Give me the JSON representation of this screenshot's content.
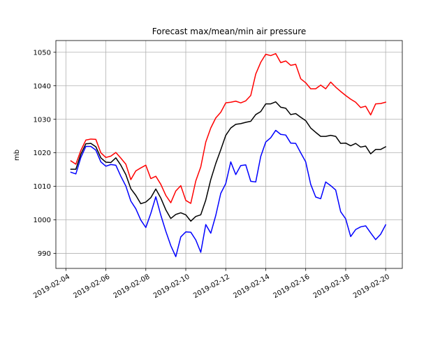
{
  "chart_data": {
    "type": "line",
    "title": "Forecast max/mean/min air pressure",
    "xlabel": "",
    "ylabel": "mb",
    "xlim": [
      "2019-02-03T12:00",
      "2019-02-20T20:00"
    ],
    "ylim": [
      985.5,
      1053.5
    ],
    "x_ticks": [
      "2019-02-04",
      "2019-02-06",
      "2019-02-08",
      "2019-02-10",
      "2019-02-12",
      "2019-02-14",
      "2019-02-16",
      "2019-02-18",
      "2019-02-20"
    ],
    "y_ticks": [
      990,
      1000,
      1010,
      1020,
      1030,
      1040,
      1050
    ],
    "grid": true,
    "legend": "none",
    "x": [
      "2019-02-04T06:00",
      "2019-02-04T12:00",
      "2019-02-04T18:00",
      "2019-02-05T00:00",
      "2019-02-05T06:00",
      "2019-02-05T12:00",
      "2019-02-05T18:00",
      "2019-02-06T00:00",
      "2019-02-06T06:00",
      "2019-02-06T12:00",
      "2019-02-06T18:00",
      "2019-02-07T00:00",
      "2019-02-07T06:00",
      "2019-02-07T12:00",
      "2019-02-07T18:00",
      "2019-02-08T00:00",
      "2019-02-08T06:00",
      "2019-02-08T12:00",
      "2019-02-08T18:00",
      "2019-02-09T00:00",
      "2019-02-09T06:00",
      "2019-02-09T12:00",
      "2019-02-09T18:00",
      "2019-02-10T00:00",
      "2019-02-10T06:00",
      "2019-02-10T12:00",
      "2019-02-10T18:00",
      "2019-02-11T00:00",
      "2019-02-11T06:00",
      "2019-02-11T12:00",
      "2019-02-11T18:00",
      "2019-02-12T00:00",
      "2019-02-12T06:00",
      "2019-02-12T12:00",
      "2019-02-12T18:00",
      "2019-02-13T00:00",
      "2019-02-13T06:00",
      "2019-02-13T12:00",
      "2019-02-13T18:00",
      "2019-02-14T00:00",
      "2019-02-14T06:00",
      "2019-02-14T12:00",
      "2019-02-14T18:00",
      "2019-02-15T00:00",
      "2019-02-15T06:00",
      "2019-02-15T12:00",
      "2019-02-15T18:00",
      "2019-02-16T00:00",
      "2019-02-16T06:00",
      "2019-02-16T12:00",
      "2019-02-16T18:00",
      "2019-02-17T00:00",
      "2019-02-17T06:00",
      "2019-02-17T12:00",
      "2019-02-17T18:00",
      "2019-02-18T00:00",
      "2019-02-18T06:00",
      "2019-02-18T12:00",
      "2019-02-18T18:00",
      "2019-02-19T00:00",
      "2019-02-19T06:00",
      "2019-02-19T12:00",
      "2019-02-19T18:00",
      "2019-02-20T00:00"
    ],
    "series": [
      {
        "color": "#ff0000",
        "values": [
          1017.6,
          1016.6,
          1020.7,
          1023.8,
          1024.1,
          1024.0,
          1020.0,
          1018.6,
          1019.0,
          1020.1,
          1018.4,
          1016.6,
          1012.0,
          1014.6,
          1015.5,
          1016.3,
          1012.3,
          1013.0,
          1010.6,
          1007.3,
          1005.1,
          1008.6,
          1010.2,
          1005.8,
          1004.9,
          1011.6,
          1015.8,
          1023.2,
          1027.4,
          1030.4,
          1032.1,
          1034.9,
          1035.1,
          1035.4,
          1034.9,
          1035.5,
          1037.1,
          1043.5,
          1047.0,
          1049.4,
          1049.0,
          1049.6,
          1046.9,
          1047.4,
          1046.1,
          1046.4,
          1042.1,
          1040.9,
          1039.1,
          1039.1,
          1040.2,
          1039.1,
          1041.1,
          1039.6,
          1038.3,
          1037.1,
          1036.0,
          1035.1,
          1033.5,
          1033.9,
          1031.3,
          1034.6,
          1034.7,
          1035.1
        ]
      },
      {
        "color": "#000000",
        "values": [
          1015.1,
          1015.1,
          1019.6,
          1022.7,
          1022.8,
          1021.8,
          1018.5,
          1017.2,
          1017.1,
          1018.5,
          1016.3,
          1013.5,
          1009.3,
          1007.3,
          1004.8,
          1005.3,
          1006.6,
          1009.2,
          1006.5,
          1003.0,
          1000.4,
          1001.6,
          1002.1,
          1001.5,
          999.6,
          1001.0,
          1001.5,
          1005.9,
          1012.0,
          1016.8,
          1020.9,
          1025.2,
          1027.4,
          1028.5,
          1028.7,
          1029.1,
          1029.4,
          1031.4,
          1032.3,
          1034.6,
          1034.6,
          1035.2,
          1033.6,
          1033.3,
          1031.4,
          1031.7,
          1030.6,
          1029.6,
          1027.4,
          1026.1,
          1024.9,
          1024.9,
          1025.2,
          1024.9,
          1022.8,
          1022.9,
          1022.1,
          1022.8,
          1021.7,
          1022.0,
          1019.7,
          1021.0,
          1021.0,
          1021.8
        ]
      },
      {
        "color": "#0000ff",
        "values": [
          1014.2,
          1013.7,
          1018.6,
          1021.9,
          1021.9,
          1020.8,
          1017.3,
          1016.0,
          1016.5,
          1016.3,
          1013.0,
          1010.1,
          1005.6,
          1003.3,
          999.9,
          997.7,
          1001.9,
          1006.9,
          1001.4,
          996.6,
          992.3,
          989.0,
          994.9,
          996.4,
          996.3,
          994.0,
          990.3,
          998.6,
          996.0,
          1001.3,
          1007.9,
          1010.8,
          1017.3,
          1013.5,
          1016.2,
          1016.4,
          1011.5,
          1011.3,
          1018.9,
          1023.2,
          1024.5,
          1026.7,
          1025.5,
          1025.3,
          1022.9,
          1022.8,
          1020.0,
          1017.3,
          1010.6,
          1006.8,
          1006.3,
          1011.3,
          1010.2,
          1008.9,
          1002.4,
          1000.3,
          995.0,
          997.1,
          997.9,
          998.2,
          996.1,
          994.1,
          995.7,
          998.5
        ]
      }
    ]
  }
}
